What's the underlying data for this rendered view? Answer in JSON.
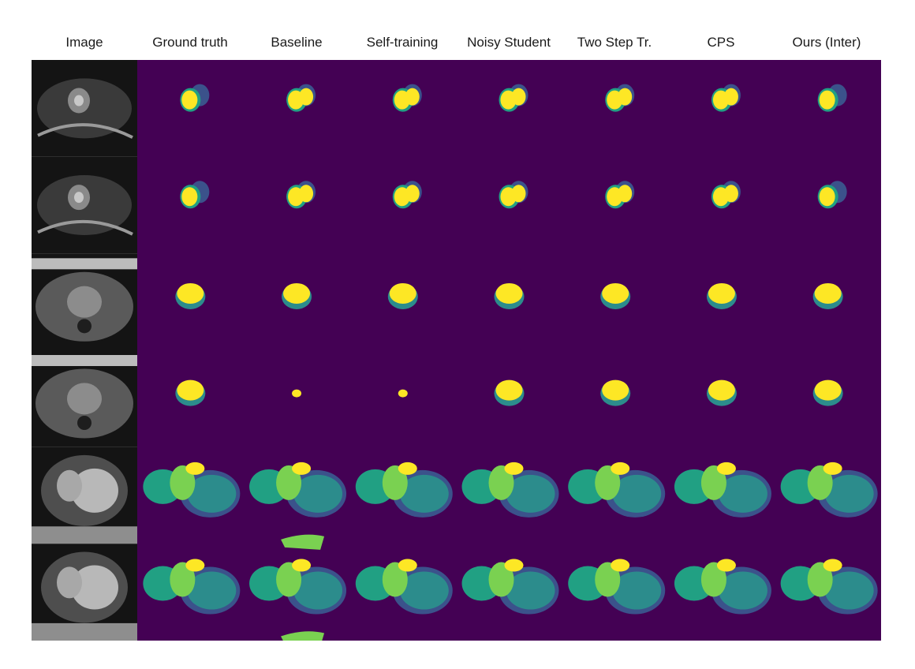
{
  "figure": {
    "columns": [
      "Image",
      "Ground truth",
      "Baseline",
      "Self-training",
      "Noisy Student",
      "Two Step Tr.",
      "CPS",
      "Ours (Inter)"
    ],
    "row_count": 6,
    "row_types": [
      "cardiac-short-axis",
      "cardiac-short-axis",
      "prostate",
      "prostate",
      "cardiac-long-axis",
      "cardiac-long-axis"
    ],
    "colors": {
      "background": "#440154",
      "class_1": "#fde725",
      "class_2": "#3b528b",
      "class_3": "#2c8c8c",
      "class_4": "#21a083",
      "class_5": "#7ad151",
      "mri_dark": "#141414",
      "mri_light": "#c8c8c8"
    }
  }
}
